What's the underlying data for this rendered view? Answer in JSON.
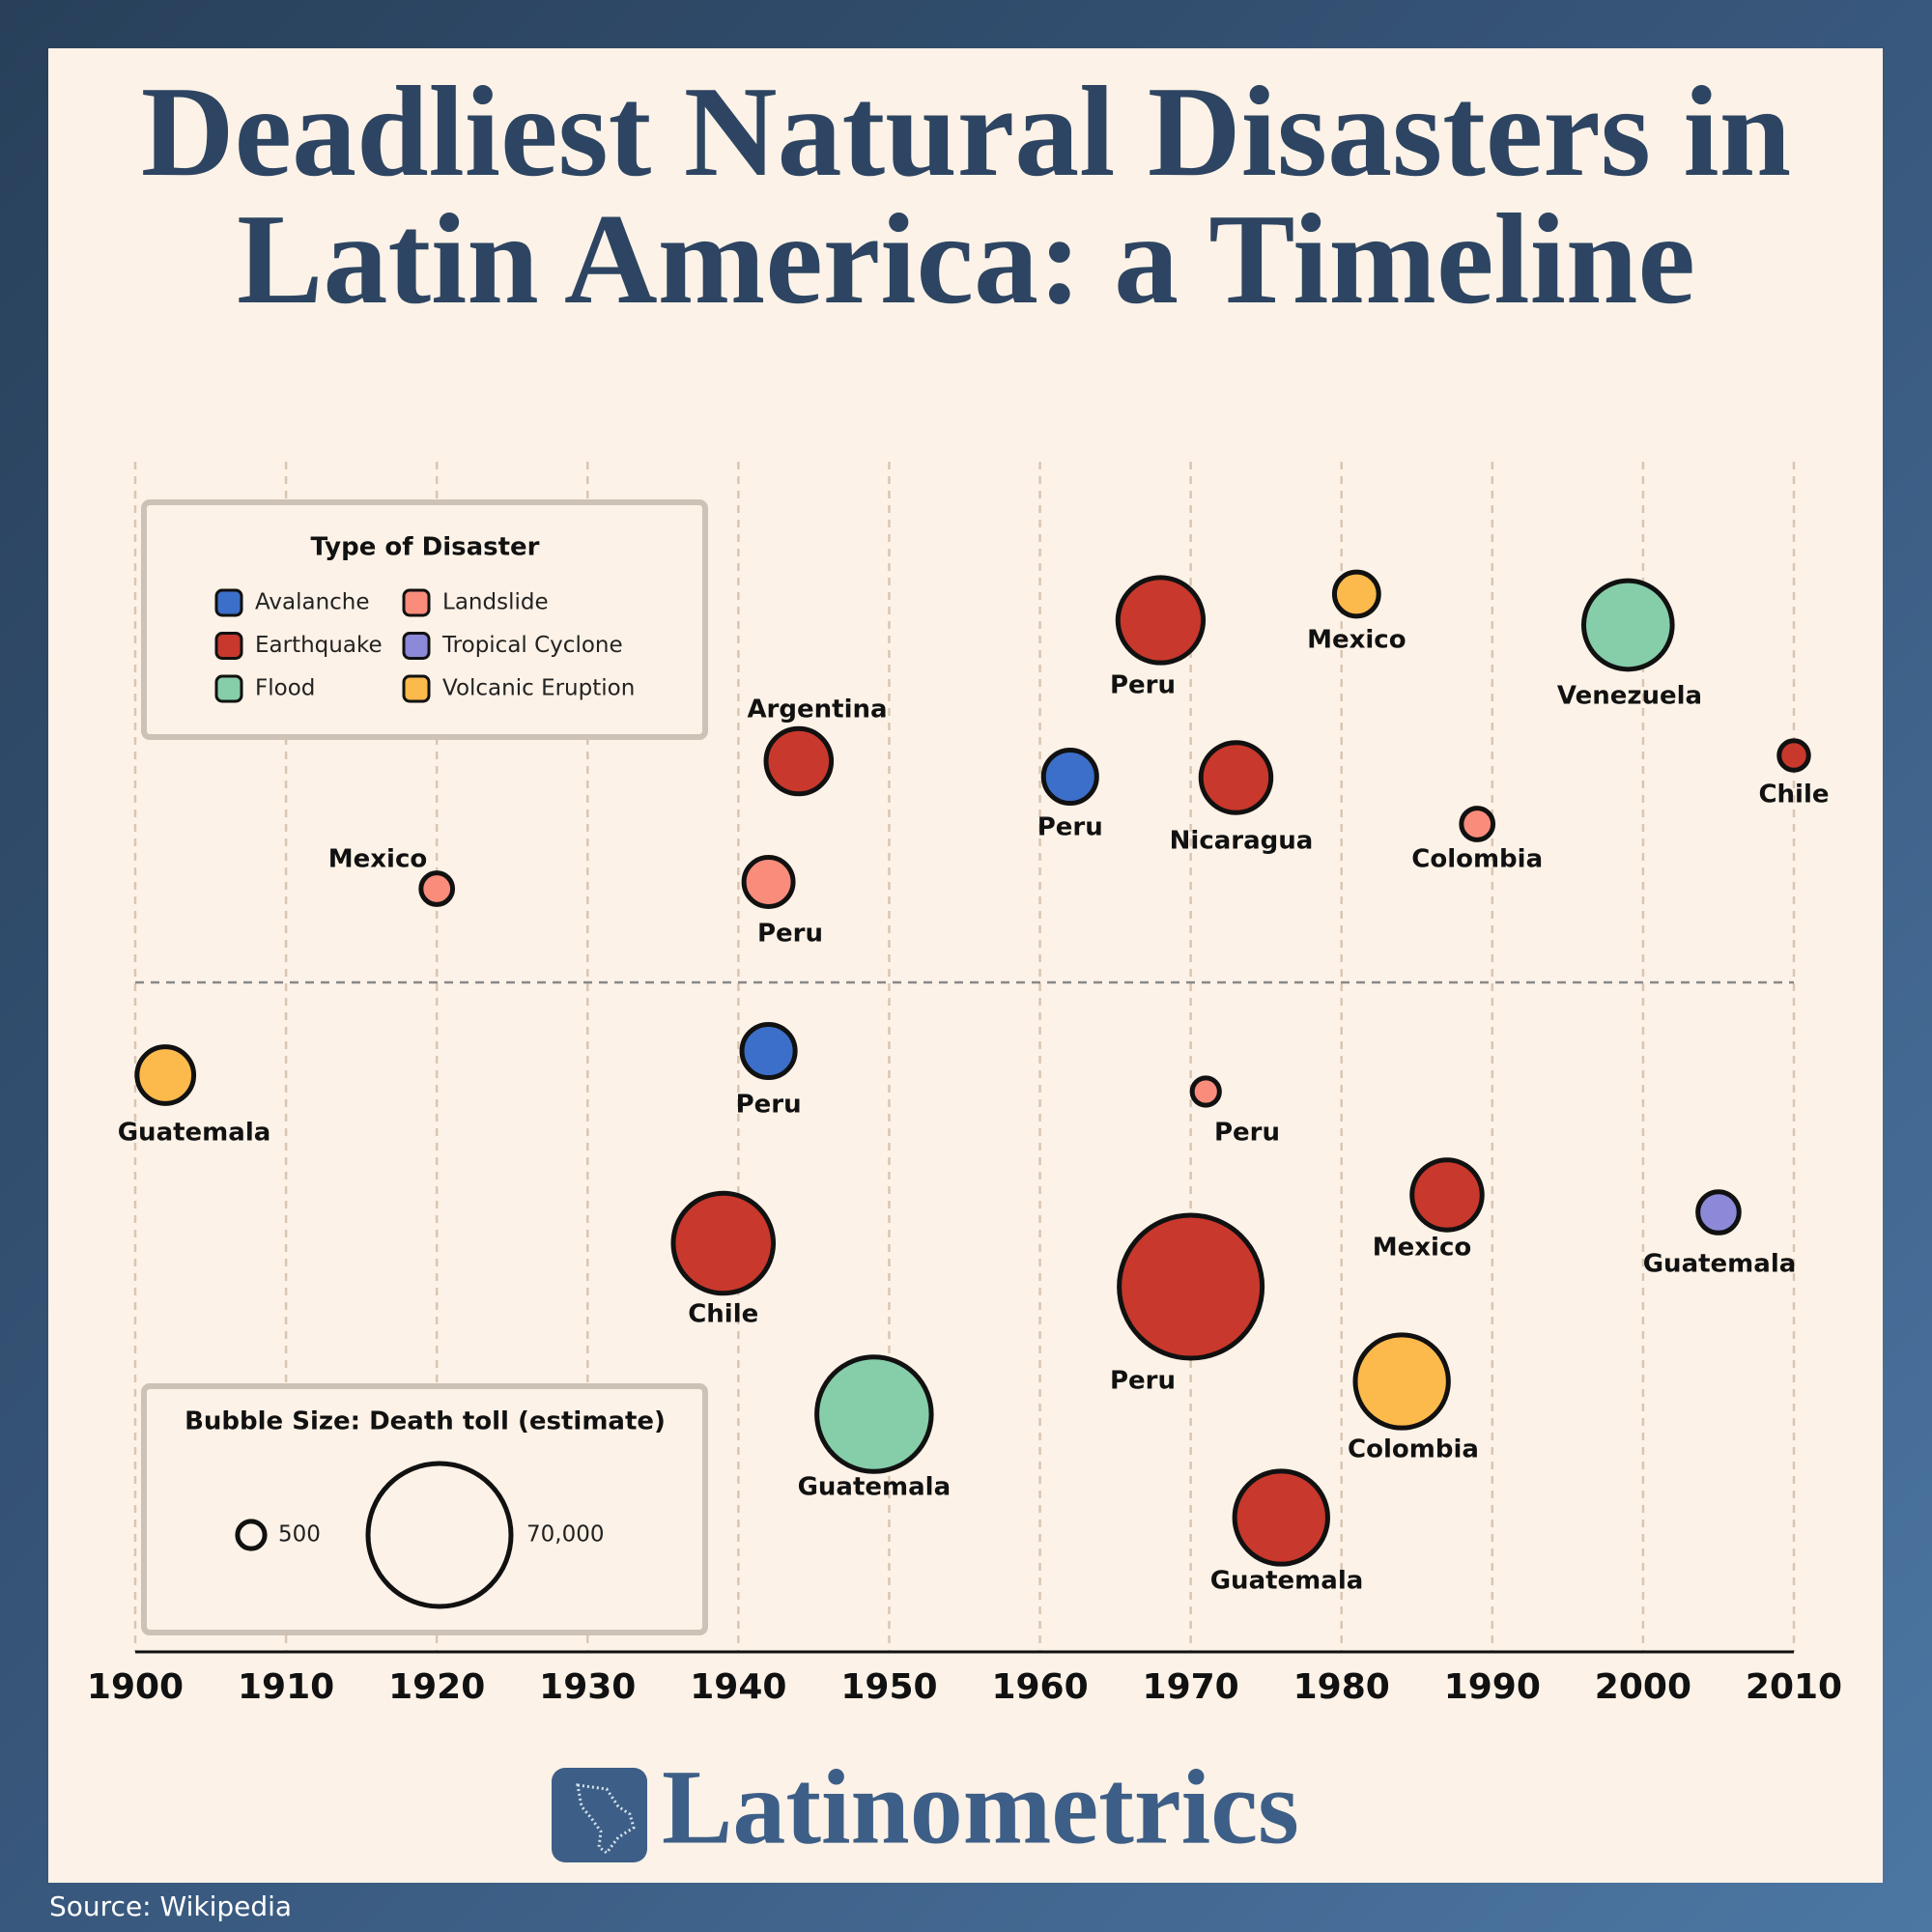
{
  "chart_data": {
    "type": "bubble",
    "title": "Deadliest Natural Disasters in Latin America: a Timeline",
    "legend_title": "Type of Disaster",
    "size_legend": {
      "title": "Bubble Size: Death toll (estimate)",
      "sizes": [
        500,
        {
          "value": 70000,
          "label": "70,000"
        }
      ]
    },
    "xlim": [
      1900,
      2010
    ],
    "xticks": [
      1900,
      1910,
      1920,
      1930,
      1940,
      1950,
      1960,
      1970,
      1980,
      1990,
      2000,
      2010
    ],
    "grid": true,
    "series": [
      {
        "name": "Avalanche",
        "color": "#3b6fc9",
        "x": [
          1942,
          1962
        ],
        "sizes": [
          4000,
          4000
        ],
        "labels": [
          "Peru",
          "Peru"
        ]
      },
      {
        "name": "Earthquake",
        "color": "#c8382c",
        "x": [
          1939,
          1944,
          1968,
          1970,
          1973,
          1976,
          1987,
          2010
        ],
        "sizes": [
          28000,
          8000,
          18000,
          70000,
          10000,
          23000,
          10000,
          525
        ],
        "labels": [
          "Chile",
          "Argentina",
          "Peru",
          "Peru",
          "Nicaragua",
          "Guatemala",
          "Mexico",
          "Chile"
        ]
      },
      {
        "name": "Flood",
        "color": "#86cdaa",
        "x": [
          1949,
          1999
        ],
        "sizes": [
          40000,
          20000
        ],
        "labels": [
          "Guatemala",
          "Venezuela"
        ]
      },
      {
        "name": "Landslide",
        "color": "#f98c7b",
        "x": [
          1920,
          1942,
          1971,
          1989
        ],
        "sizes": [
          600,
          3000,
          500,
          600
        ],
        "labels": [
          "Mexico",
          "Peru",
          "Peru",
          "Colombia"
        ]
      },
      {
        "name": "Tropical Cyclone",
        "color": "#8c89d9",
        "x": [
          2005
        ],
        "sizes": [
          1500
        ],
        "labels": [
          "Guatemala"
        ]
      },
      {
        "name": "Volcanic Eruption",
        "color": "#fcb94c",
        "x": [
          1902,
          1981,
          1984
        ],
        "sizes": [
          5000,
          2000,
          23000
        ],
        "labels": [
          "Guatemala",
          "Mexico",
          "Colombia"
        ]
      }
    ]
  },
  "footer": {
    "brand": "Latinometrics",
    "source": "Source: Wikipedia"
  }
}
